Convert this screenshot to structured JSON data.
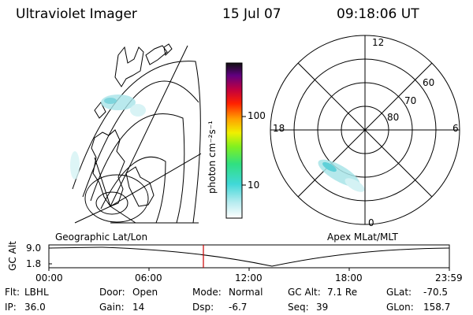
{
  "header": {
    "title": "Ultraviolet Imager",
    "date": "15 Jul 07",
    "time": "09:18:06 UT"
  },
  "colorbar": {
    "label": "photon cm⁻²s⁻¹",
    "ticks": [
      "100",
      "10"
    ]
  },
  "left_panel": {
    "caption": "Geographic Lat/Lon"
  },
  "right_panel": {
    "caption": "Apex MLat/MLT",
    "mlt_labels": {
      "top": "12",
      "left": "18",
      "right": "6",
      "bottom": "0"
    },
    "lat_labels": [
      "60",
      "70",
      "80"
    ]
  },
  "timeline": {
    "ylabel": "GC Alt",
    "yticks": [
      "9.0",
      "1.8"
    ],
    "xticks": [
      "00:00",
      "06:00",
      "12:00",
      "18:00",
      "23:59"
    ],
    "current_time": "09:18"
  },
  "info": {
    "flt_label": "Flt:",
    "flt_value": "LBHL",
    "ip_label": "IP:",
    "ip_value": "36.0",
    "door_label": "Door:",
    "door_value": "Open",
    "gain_label": "Gain:",
    "gain_value": "14",
    "mode_label": "Mode:",
    "mode_value": "Normal",
    "dsp_label": "Dsp:",
    "dsp_value": "-6.7",
    "gcalt_label": "GC Alt:",
    "gcalt_value": "7.1 Re",
    "seq_label": "Seq:",
    "seq_value": "39",
    "glat_label": "GLat:",
    "glat_value": "-70.5",
    "glon_label": "GLon:",
    "glon_value": "158.7"
  },
  "colors": {
    "marker": "#cc0000",
    "aurora": "#a8e4e8"
  }
}
